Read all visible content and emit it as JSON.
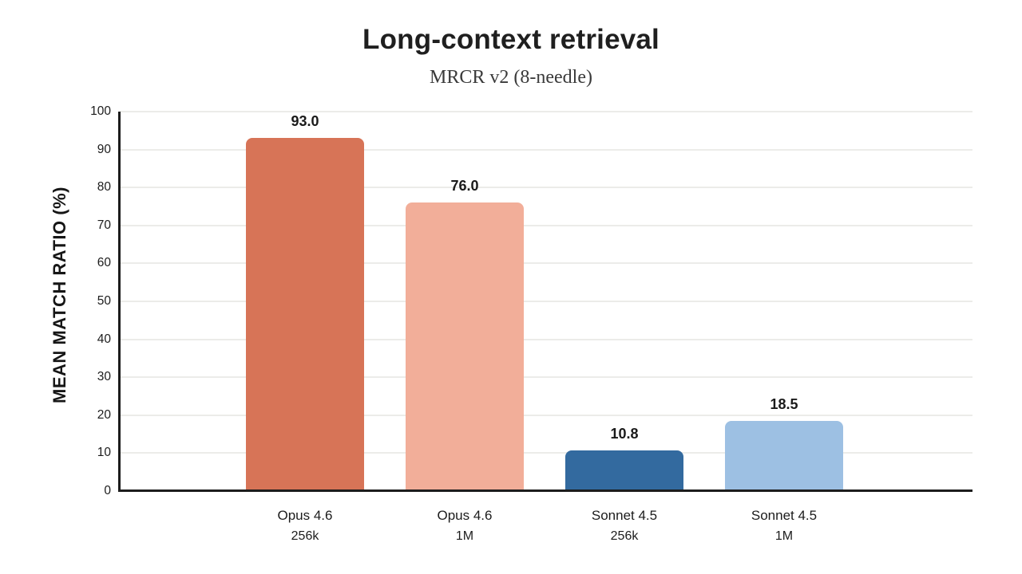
{
  "title": "Long-context retrieval",
  "subtitle": "MRCR v2 (8-needle)",
  "colors": {
    "background": "#ffffff",
    "axis": "#1c1c1c",
    "gridline": "#ececE9",
    "text": "#1f1f1f",
    "bar_opus_256k": "#d77457",
    "bar_opus_1m": "#f2ae99",
    "bar_sonnet_256k": "#336a9f",
    "bar_sonnet_1m": "#9dc0e3"
  },
  "chart_data": {
    "type": "bar",
    "title": "Long-context retrieval",
    "subtitle": "MRCR v2 (8-needle)",
    "xlabel": "",
    "ylabel": "MEAN MATCH RATIO (%)",
    "ylim": [
      0,
      100
    ],
    "ytick_step": 10,
    "ytick_labels": [
      "0",
      "10",
      "20",
      "30",
      "40",
      "50",
      "60",
      "70",
      "80",
      "90",
      "100"
    ],
    "grid": true,
    "legend": "none",
    "categories": [
      {
        "line1": "Opus 4.6",
        "line2": "256k"
      },
      {
        "line1": "Opus 4.6",
        "line2": "1M"
      },
      {
        "line1": "Sonnet 4.5",
        "line2": "256k"
      },
      {
        "line1": "Sonnet 4.5",
        "line2": "1M"
      }
    ],
    "values": [
      93.0,
      76.0,
      10.8,
      18.5
    ],
    "value_labels": [
      "93.0",
      "76.0",
      "10.8",
      "18.5"
    ],
    "bar_colors": [
      "#d77457",
      "#f2ae99",
      "#336a9f",
      "#9dc0e3"
    ]
  }
}
